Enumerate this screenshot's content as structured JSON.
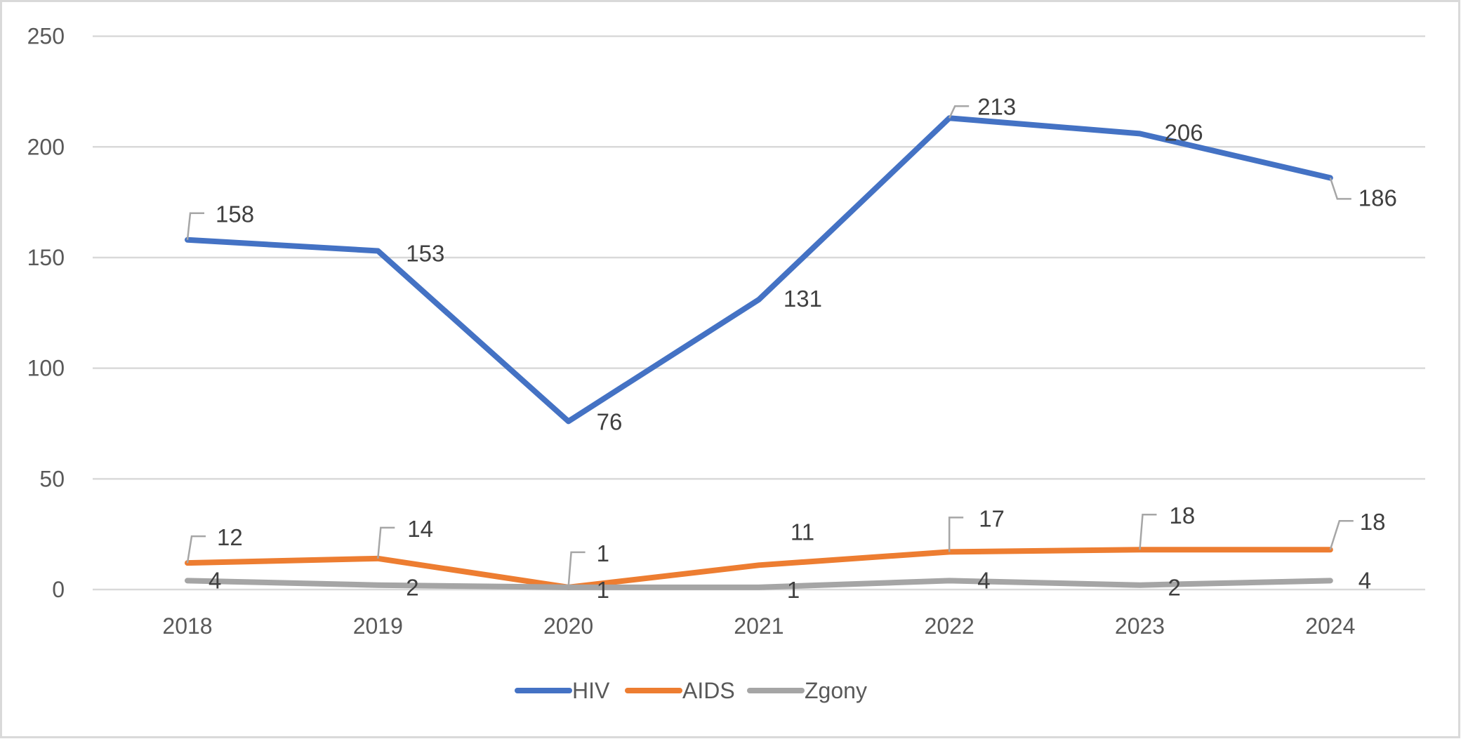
{
  "chart_data": {
    "type": "line",
    "title": "",
    "xlabel": "",
    "ylabel": "",
    "categories": [
      "2018",
      "2019",
      "2020",
      "2021",
      "2022",
      "2023",
      "2024"
    ],
    "ylim": [
      0,
      250
    ],
    "yticks": [
      0,
      50,
      100,
      150,
      200,
      250
    ],
    "ytick_labels": [
      "0",
      "50",
      "100",
      "150",
      "200",
      "250"
    ],
    "grid": true,
    "legend_position": "bottom",
    "series": [
      {
        "name": "HIV",
        "color": "#4472C4",
        "values": [
          158,
          153,
          76,
          131,
          213,
          206,
          186
        ]
      },
      {
        "name": "AIDS",
        "color": "#ED7D31",
        "values": [
          12,
          14,
          1,
          11,
          17,
          18,
          18
        ]
      },
      {
        "name": "Zgony",
        "color": "#A5A5A5",
        "values": [
          4,
          2,
          1,
          1,
          4,
          2,
          4
        ]
      }
    ],
    "data_labels": true
  }
}
